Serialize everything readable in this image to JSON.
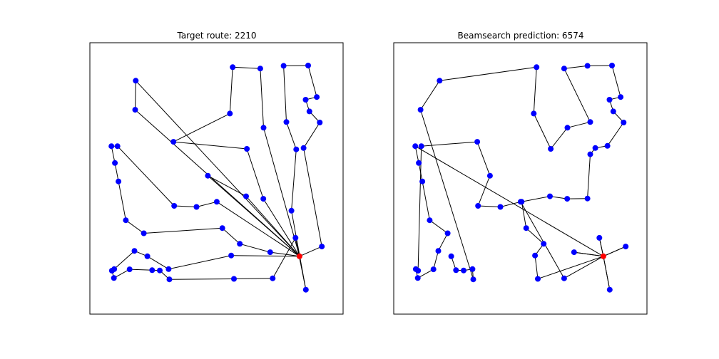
{
  "chart_data": [
    {
      "type": "scatter",
      "title": "Target route: 2210",
      "xlim": [
        0,
        100
      ],
      "ylim": [
        0,
        100
      ],
      "axes_visible": false,
      "grid": false,
      "node_color": "#0000ff",
      "depot_color": "#ff0000",
      "depot": [
        82.8,
        21.3
      ],
      "nodes": [
        [
          82.8,
          21.3
        ],
        [
          91.6,
          24.9
        ],
        [
          84.4,
          61.2
        ],
        [
          90.8,
          70.6
        ],
        [
          86.7,
          74.7
        ],
        [
          85.2,
          79.0
        ],
        [
          89.6,
          80.0
        ],
        [
          86.2,
          91.6
        ],
        [
          76.5,
          91.5
        ],
        [
          77.6,
          70.8
        ],
        [
          81.5,
          60.7
        ],
        [
          79.6,
          38.1
        ],
        [
          85.3,
          9.0
        ],
        [
          81.2,
          28.1
        ],
        [
          72.2,
          13.2
        ],
        [
          56.9,
          13.0
        ],
        [
          31.4,
          12.8
        ],
        [
          27.6,
          16.1
        ],
        [
          24.6,
          16.2
        ],
        [
          15.7,
          16.5
        ],
        [
          9.5,
          13.3
        ],
        [
          8.7,
          16.0
        ],
        [
          9.6,
          16.6
        ],
        [
          17.6,
          23.3
        ],
        [
          22.7,
          21.3
        ],
        [
          31.1,
          16.6
        ],
        [
          55.8,
          21.6
        ],
        [
          82.8,
          21.3
        ],
        [
          71.2,
          22.8
        ],
        [
          59.2,
          25.9
        ],
        [
          52.3,
          31.7
        ],
        [
          21.3,
          29.8
        ],
        [
          14.2,
          34.6
        ],
        [
          11.3,
          48.9
        ],
        [
          9.9,
          55.7
        ],
        [
          8.5,
          61.9
        ],
        [
          10.9,
          61.9
        ],
        [
          33.3,
          39.9
        ],
        [
          42.1,
          39.5
        ],
        [
          50.1,
          41.4
        ],
        [
          82.8,
          21.3
        ],
        [
          61.7,
          43.4
        ],
        [
          46.6,
          51.0
        ],
        [
          82.8,
          21.3
        ],
        [
          17.9,
          75.3
        ],
        [
          18.1,
          86.0
        ],
        [
          82.8,
          21.3
        ],
        [
          68.5,
          42.5
        ],
        [
          62.0,
          60.9
        ],
        [
          33.0,
          63.5
        ],
        [
          55.3,
          73.9
        ],
        [
          56.4,
          91.0
        ],
        [
          67.3,
          90.5
        ],
        [
          68.6,
          68.7
        ],
        [
          82.8,
          21.3
        ]
      ]
    },
    {
      "type": "scatter",
      "title": "Beamsearch prediction: 6574",
      "xlim": [
        0,
        100
      ],
      "ylim": [
        0,
        100
      ],
      "axes_visible": false,
      "grid": false,
      "node_color": "#0000ff",
      "depot_color": "#ff0000",
      "depot": [
        82.8,
        21.3
      ],
      "nodes": [
        [
          82.8,
          21.3
        ],
        [
          85.3,
          9.0
        ],
        [
          82.8,
          21.3
        ],
        [
          91.6,
          24.9
        ],
        [
          82.8,
          21.3
        ],
        [
          81.2,
          28.1
        ],
        [
          82.8,
          21.3
        ],
        [
          71.2,
          22.8
        ],
        [
          82.8,
          21.3
        ],
        [
          67.3,
          13.2
        ],
        [
          50.1,
          41.4
        ],
        [
          42.1,
          39.5
        ],
        [
          33.3,
          39.9
        ],
        [
          38.0,
          51.0
        ],
        [
          33.0,
          63.5
        ],
        [
          10.9,
          61.9
        ],
        [
          9.6,
          16.0
        ],
        [
          8.7,
          16.6
        ],
        [
          9.5,
          13.3
        ],
        [
          15.7,
          16.5
        ],
        [
          17.6,
          23.3
        ],
        [
          21.3,
          29.8
        ],
        [
          14.2,
          34.6
        ],
        [
          11.3,
          48.9
        ],
        [
          9.9,
          55.7
        ],
        [
          8.5,
          61.9
        ],
        [
          82.8,
          21.3
        ],
        [
          56.9,
          13.0
        ],
        [
          55.8,
          21.6
        ],
        [
          59.2,
          25.9
        ],
        [
          52.3,
          31.7
        ],
        [
          50.5,
          41.4
        ],
        [
          61.7,
          43.4
        ],
        [
          68.5,
          42.5
        ],
        [
          76.5,
          42.6
        ],
        [
          77.6,
          58.9
        ],
        [
          79.6,
          61.2
        ],
        [
          84.4,
          62.0
        ],
        [
          90.8,
          70.6
        ],
        [
          86.7,
          74.7
        ],
        [
          85.2,
          79.0
        ],
        [
          89.6,
          80.0
        ],
        [
          86.2,
          91.6
        ],
        [
          76.5,
          91.5
        ],
        [
          67.3,
          90.5
        ],
        [
          77.6,
          70.8
        ],
        [
          68.6,
          68.7
        ],
        [
          62.0,
          60.9
        ],
        [
          55.3,
          73.9
        ],
        [
          56.4,
          91.0
        ],
        [
          18.1,
          86.0
        ],
        [
          10.6,
          75.3
        ],
        [
          31.4,
          12.8
        ],
        [
          31.1,
          16.6
        ],
        [
          27.6,
          16.1
        ],
        [
          24.6,
          16.2
        ],
        [
          22.7,
          21.3
        ]
      ]
    }
  ]
}
